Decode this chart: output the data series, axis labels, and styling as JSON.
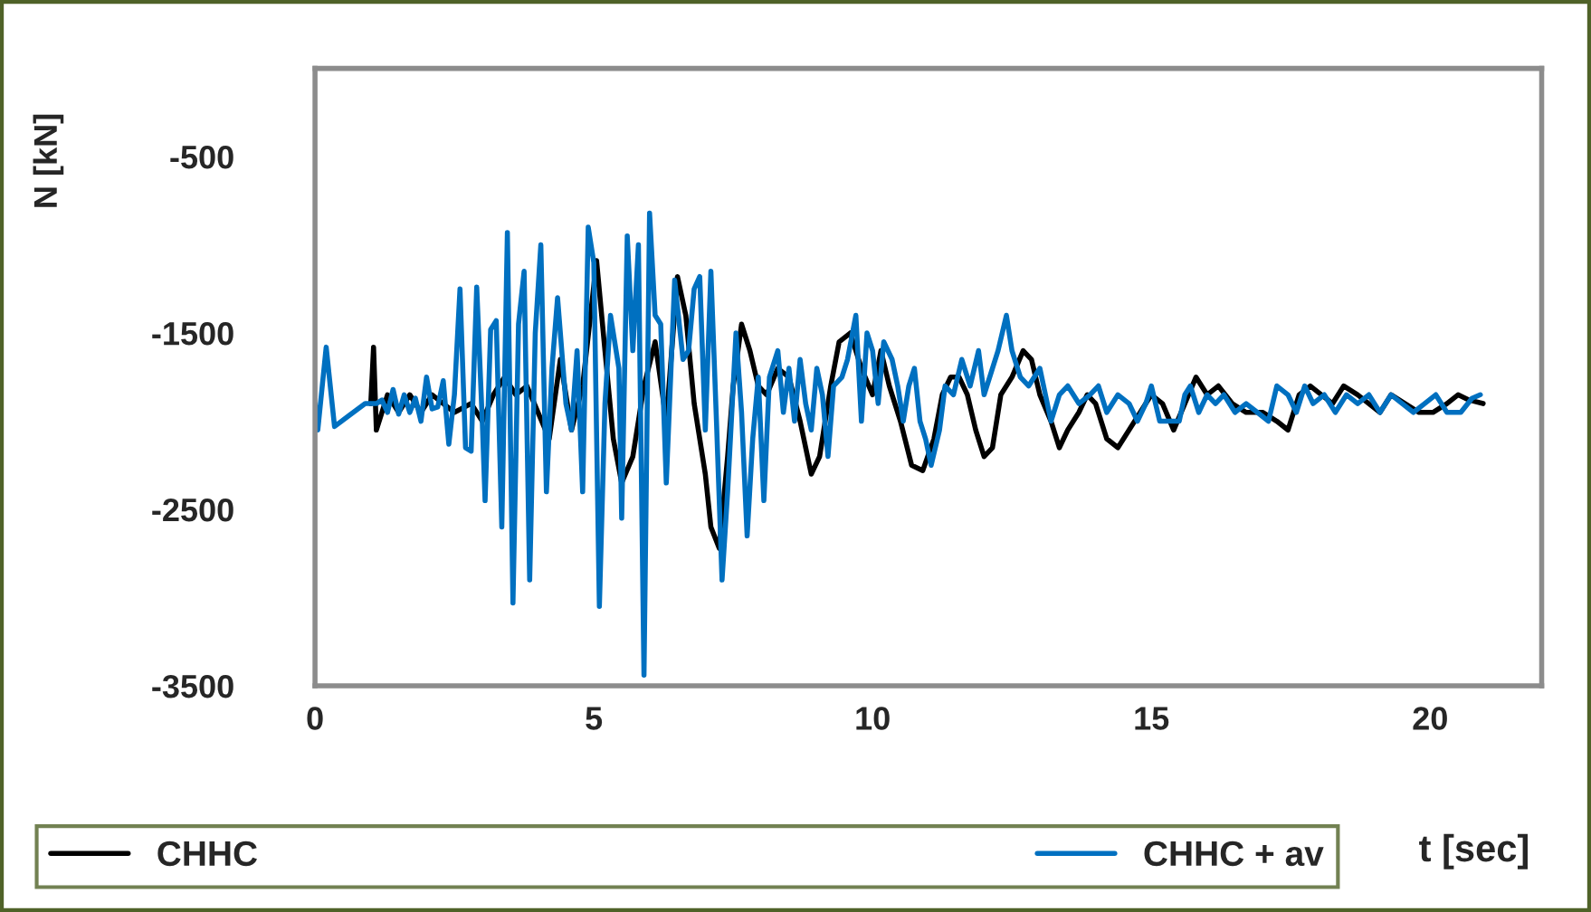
{
  "chart_data": {
    "type": "line",
    "xlabel": "t [sec]",
    "ylabel": "N [kN]",
    "xlim": [
      0,
      22
    ],
    "xticks": [
      0,
      5,
      10,
      15,
      20
    ],
    "ylim": [
      -3500,
      0
    ],
    "yticks": [
      -3500,
      -2500,
      -1500,
      -500
    ],
    "grid": false,
    "legend": "bottom",
    "marker": "none",
    "line_style": "solid",
    "series": [
      {
        "name": "CHHC",
        "color": "#000000",
        "x": [
          1.0,
          1.05,
          1.1,
          1.2,
          1.3,
          1.5,
          1.7,
          1.9,
          2.1,
          2.3,
          2.5,
          2.8,
          3.0,
          3.2,
          3.4,
          3.6,
          3.8,
          4.0,
          4.2,
          4.4,
          4.6,
          4.8,
          5.05,
          5.2,
          5.35,
          5.5,
          5.7,
          5.9,
          6.1,
          6.3,
          6.5,
          6.65,
          6.8,
          7.0,
          7.1,
          7.25,
          7.4,
          7.5,
          7.65,
          7.8,
          7.95,
          8.1,
          8.3,
          8.5,
          8.7,
          8.9,
          9.05,
          9.25,
          9.4,
          9.6,
          9.8,
          10.0,
          10.15,
          10.3,
          10.5,
          10.7,
          10.9,
          11.1,
          11.25,
          11.4,
          11.55,
          11.7,
          11.85,
          12.0,
          12.15,
          12.3,
          12.5,
          12.7,
          12.85,
          13.0,
          13.2,
          13.35,
          13.5,
          13.7,
          13.85,
          14.0,
          14.2,
          14.4,
          14.6,
          14.8,
          15.0,
          15.2,
          15.4,
          15.6,
          15.8,
          16.0,
          16.2,
          16.45,
          16.7,
          17.0,
          17.25,
          17.45,
          17.65,
          17.85,
          18.05,
          18.25,
          18.45,
          18.7,
          18.9,
          19.1,
          19.3,
          19.55,
          19.8,
          20.05,
          20.3,
          20.5,
          20.7,
          20.95
        ],
        "values": [
          -1900,
          -1580,
          -2050,
          -1950,
          -1850,
          -1950,
          -1850,
          -1950,
          -1850,
          -1900,
          -1950,
          -1900,
          -2000,
          -1850,
          -1750,
          -1850,
          -1800,
          -1950,
          -2100,
          -1650,
          -2050,
          -1800,
          -1090,
          -1600,
          -2100,
          -2350,
          -2200,
          -1800,
          -1550,
          -2000,
          -1180,
          -1400,
          -1900,
          -2300,
          -2600,
          -2720,
          -2200,
          -1800,
          -1450,
          -1600,
          -1800,
          -1850,
          -1700,
          -1750,
          -2000,
          -2300,
          -2200,
          -1800,
          -1550,
          -1500,
          -1700,
          -1850,
          -1600,
          -1800,
          -2000,
          -2250,
          -2280,
          -2100,
          -1850,
          -1750,
          -1750,
          -1850,
          -2050,
          -2200,
          -2150,
          -1850,
          -1750,
          -1600,
          -1650,
          -1850,
          -2000,
          -2150,
          -2050,
          -1950,
          -1850,
          -1900,
          -2100,
          -2150,
          -2050,
          -1950,
          -1850,
          -1900,
          -2050,
          -1900,
          -1750,
          -1850,
          -1800,
          -1900,
          -1950,
          -1950,
          -2000,
          -2050,
          -1850,
          -1800,
          -1850,
          -1900,
          -1800,
          -1850,
          -1900,
          -1950,
          -1850,
          -1900,
          -1950,
          -1950,
          -1900,
          -1850,
          -1880,
          -1900
        ]
      },
      {
        "name": "CHHC + av",
        "color": "#0070c0",
        "x": [
          0,
          0.05,
          0.2,
          0.35,
          0.6,
          0.9,
          1.1,
          1.2,
          1.3,
          1.4,
          1.5,
          1.6,
          1.7,
          1.8,
          1.9,
          2.0,
          2.1,
          2.2,
          2.3,
          2.4,
          2.5,
          2.6,
          2.7,
          2.8,
          2.9,
          3.0,
          3.05,
          3.15,
          3.25,
          3.35,
          3.45,
          3.55,
          3.65,
          3.75,
          3.85,
          3.95,
          4.05,
          4.15,
          4.25,
          4.35,
          4.5,
          4.6,
          4.7,
          4.8,
          4.9,
          5.0,
          5.1,
          5.2,
          5.3,
          5.45,
          5.5,
          5.6,
          5.7,
          5.8,
          5.9,
          6.0,
          6.1,
          6.2,
          6.3,
          6.45,
          6.6,
          6.7,
          6.8,
          6.9,
          7.0,
          7.1,
          7.2,
          7.3,
          7.4,
          7.55,
          7.65,
          7.75,
          7.85,
          7.95,
          8.05,
          8.15,
          8.3,
          8.4,
          8.5,
          8.6,
          8.7,
          8.8,
          8.9,
          9.0,
          9.1,
          9.2,
          9.3,
          9.45,
          9.55,
          9.7,
          9.8,
          9.9,
          10.0,
          10.1,
          10.2,
          10.35,
          10.45,
          10.55,
          10.65,
          10.75,
          10.85,
          10.95,
          11.05,
          11.2,
          11.3,
          11.45,
          11.6,
          11.75,
          11.9,
          12.0,
          12.15,
          12.25,
          12.4,
          12.5,
          12.65,
          12.8,
          13.0,
          13.2,
          13.35,
          13.5,
          13.7,
          13.9,
          14.05,
          14.2,
          14.4,
          14.6,
          14.75,
          14.9,
          15.0,
          15.15,
          15.3,
          15.5,
          15.6,
          15.7,
          15.85,
          16.0,
          16.15,
          16.3,
          16.5,
          16.7,
          16.9,
          17.1,
          17.25,
          17.45,
          17.6,
          17.75,
          17.9,
          18.1,
          18.3,
          18.5,
          18.7,
          18.9,
          19.1,
          19.3,
          19.5,
          19.7,
          19.9,
          20.1,
          20.3,
          20.55,
          20.75,
          20.9
        ],
        "values": [
          -1900,
          -2050,
          -1580,
          -2030,
          -1970,
          -1900,
          -1900,
          -1880,
          -1950,
          -1820,
          -1960,
          -1850,
          -1950,
          -1870,
          -2000,
          -1750,
          -1930,
          -1920,
          -1770,
          -2130,
          -1850,
          -1250,
          -2150,
          -2170,
          -1240,
          -2000,
          -2450,
          -1480,
          -1430,
          -2600,
          -930,
          -3030,
          -1450,
          -1150,
          -2900,
          -1500,
          -1000,
          -2400,
          -1700,
          -1300,
          -1900,
          -2050,
          -1600,
          -2400,
          -900,
          -1100,
          -3050,
          -1900,
          -1400,
          -1700,
          -2550,
          -950,
          -1600,
          -1000,
          -3440,
          -820,
          -1400,
          -1450,
          -2350,
          -1200,
          -1650,
          -1600,
          -1250,
          -1180,
          -2050,
          -1150,
          -2000,
          -2900,
          -2400,
          -1500,
          -1950,
          -2650,
          -2100,
          -1750,
          -2450,
          -1750,
          -1600,
          -1950,
          -1700,
          -2000,
          -1650,
          -1900,
          -2050,
          -1700,
          -1850,
          -2200,
          -1800,
          -1750,
          -1650,
          -1400,
          -2000,
          -1500,
          -1600,
          -1900,
          -1550,
          -1650,
          -1800,
          -2000,
          -1800,
          -1700,
          -2000,
          -2100,
          -2250,
          -2050,
          -1800,
          -1850,
          -1650,
          -1800,
          -1600,
          -1850,
          -1700,
          -1600,
          -1400,
          -1600,
          -1750,
          -1800,
          -1700,
          -2000,
          -1850,
          -1800,
          -1900,
          -1850,
          -1800,
          -1950,
          -1850,
          -1900,
          -2000,
          -1900,
          -1800,
          -2000,
          -2000,
          -2000,
          -1850,
          -1800,
          -1950,
          -1850,
          -1900,
          -1850,
          -1950,
          -1900,
          -1950,
          -2000,
          -1800,
          -1850,
          -1950,
          -1800,
          -1900,
          -1850,
          -1950,
          -1850,
          -1900,
          -1850,
          -1950,
          -1850,
          -1900,
          -1950,
          -1900,
          -1850,
          -1950,
          -1950,
          -1870,
          -1850
        ]
      }
    ]
  }
}
